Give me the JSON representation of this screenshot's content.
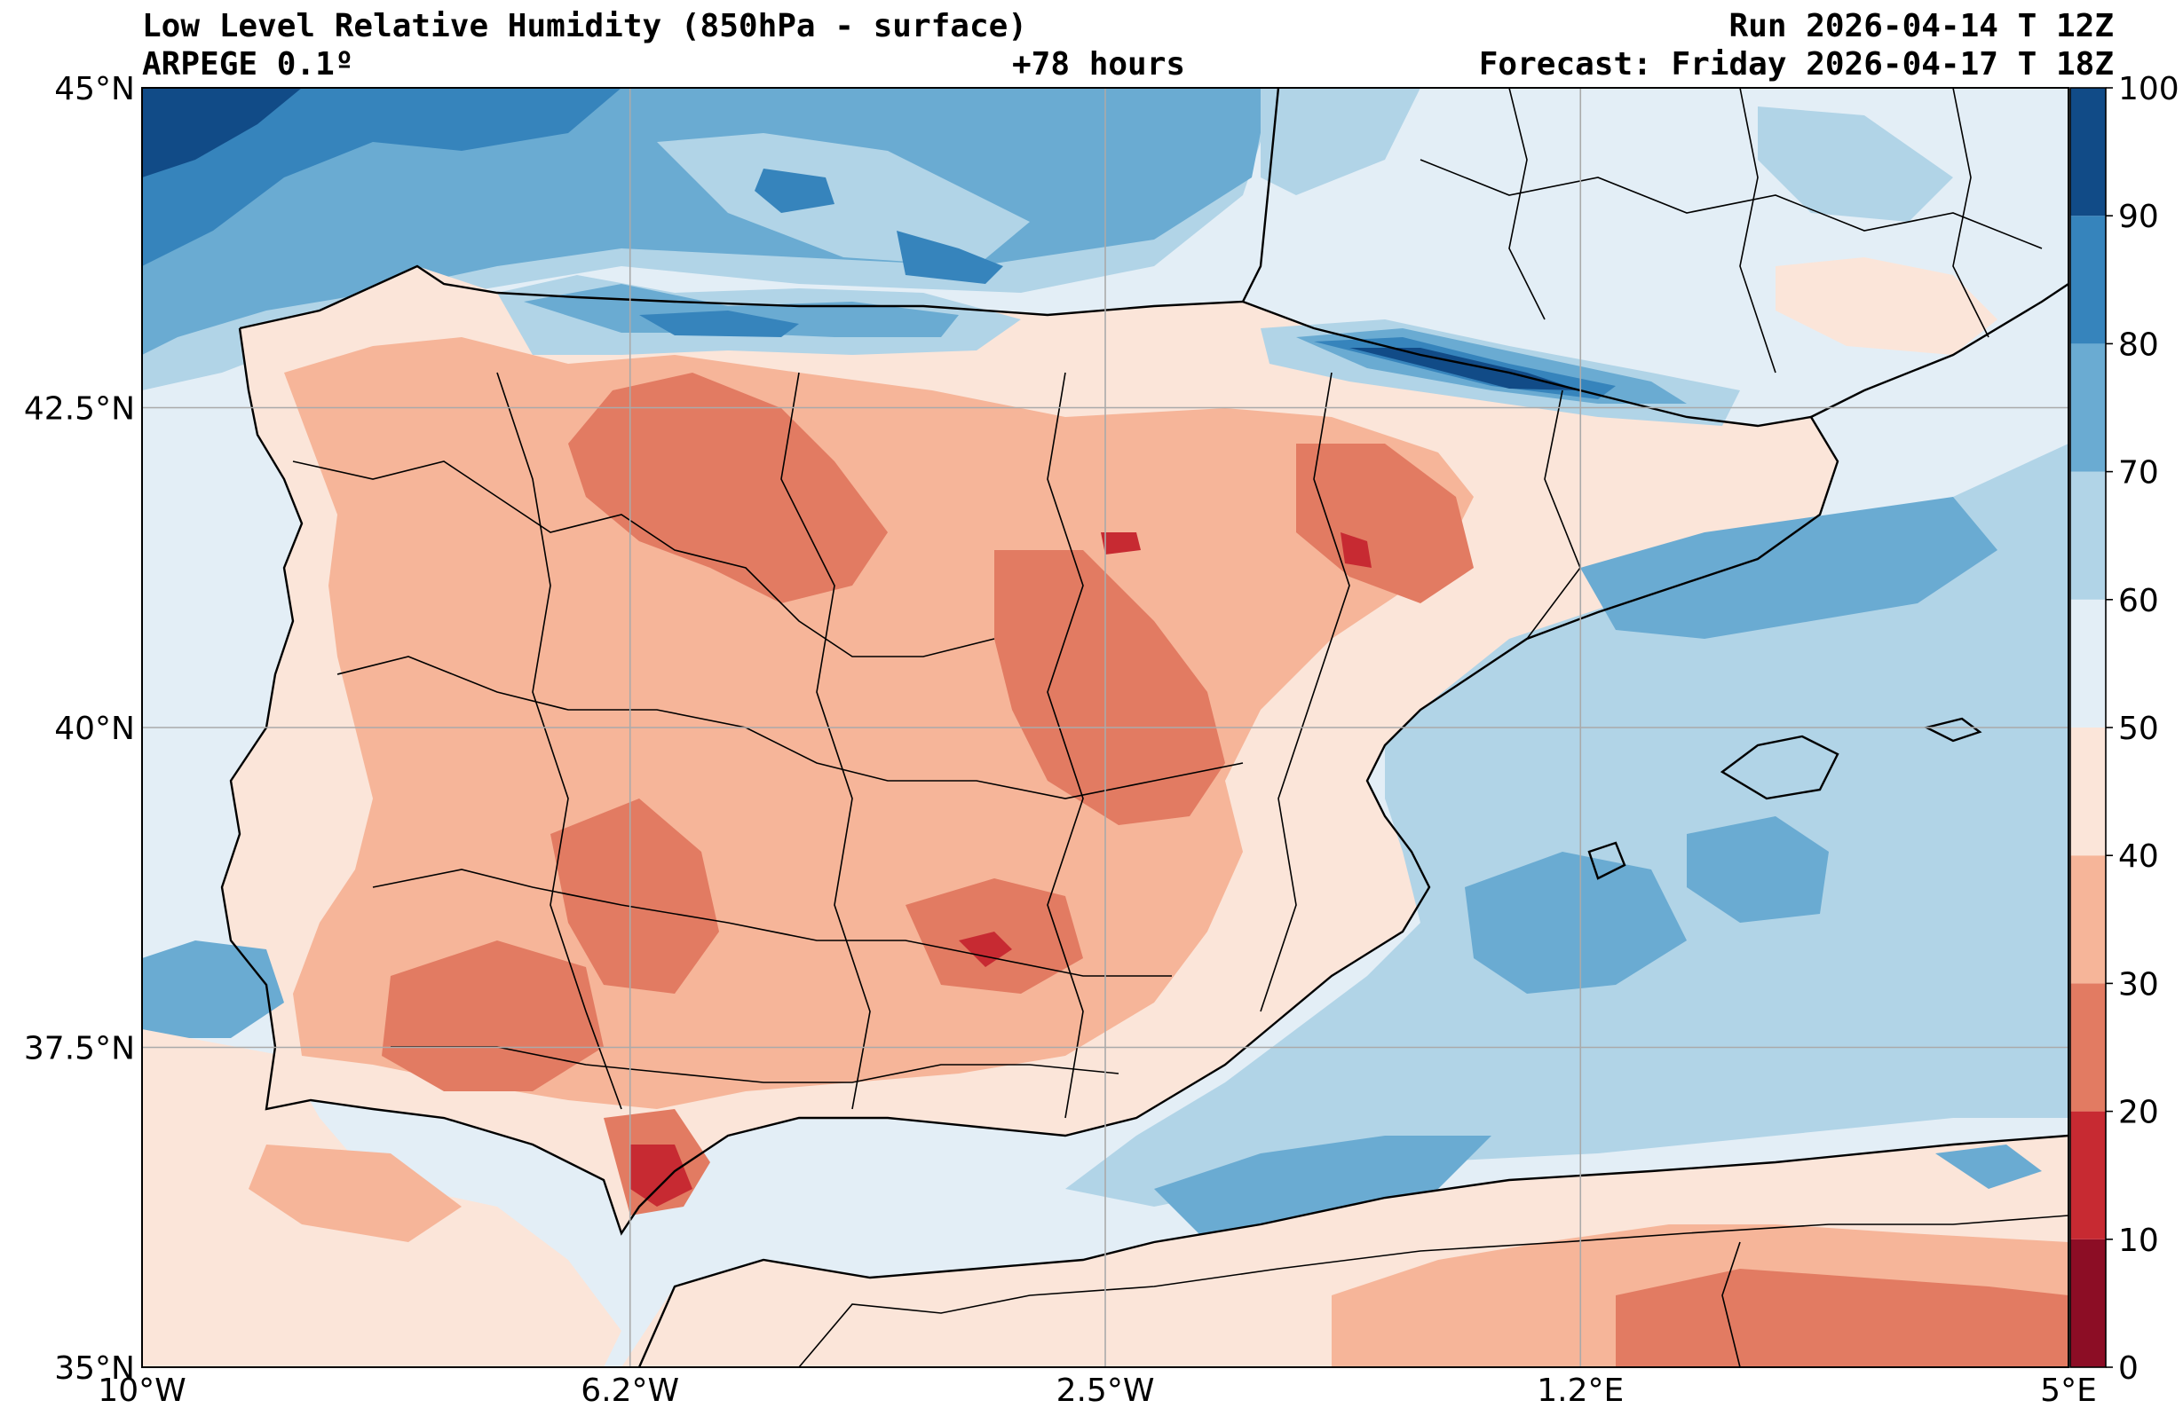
{
  "header": {
    "title_left_line1": "Low Level Relative Humidity (850hPa - surface)",
    "title_left_line2": "ARPEGE 0.1º",
    "title_center": "+78 hours",
    "title_right_line1": "Run 2026-04-14 T 12Z",
    "title_right_line2": "Forecast: Friday 2026-04-17 T 18Z"
  },
  "axes": {
    "lon_ticks": [
      {
        "label": "10°W",
        "value": -10
      },
      {
        "label": "6.2°W",
        "value": -6.2
      },
      {
        "label": "2.5°W",
        "value": -2.5
      },
      {
        "label": "1.2°E",
        "value": 1.2
      },
      {
        "label": "5°E",
        "value": 5
      }
    ],
    "lat_ticks": [
      {
        "label": "45°N",
        "value": 45
      },
      {
        "label": "42.5°N",
        "value": 42.5
      },
      {
        "label": "40°N",
        "value": 40
      },
      {
        "label": "37.5°N",
        "value": 37.5
      },
      {
        "label": "35°N",
        "value": 35
      }
    ],
    "lon_range": [
      -10,
      5
    ],
    "lat_range": [
      35,
      45
    ]
  },
  "colorbar": {
    "levels": [
      0,
      10,
      20,
      30,
      40,
      50,
      60,
      70,
      80,
      90,
      100
    ],
    "labels": [
      "0",
      "10",
      "20",
      "30",
      "40",
      "50",
      "60",
      "70",
      "80",
      "90",
      "100"
    ],
    "colors": [
      "#8c0d25",
      "#c72a32",
      "#e27b62",
      "#f6b599",
      "#fbe5d9",
      "#e3eef6",
      "#b1d4e7",
      "#6aabd2",
      "#3684bc",
      "#114b87"
    ]
  },
  "palette": {
    "sea_bg": "#e3eef6",
    "land_bg": "#fbe5d9",
    "coast": "#000000",
    "grid": "#aaaaaa"
  }
}
